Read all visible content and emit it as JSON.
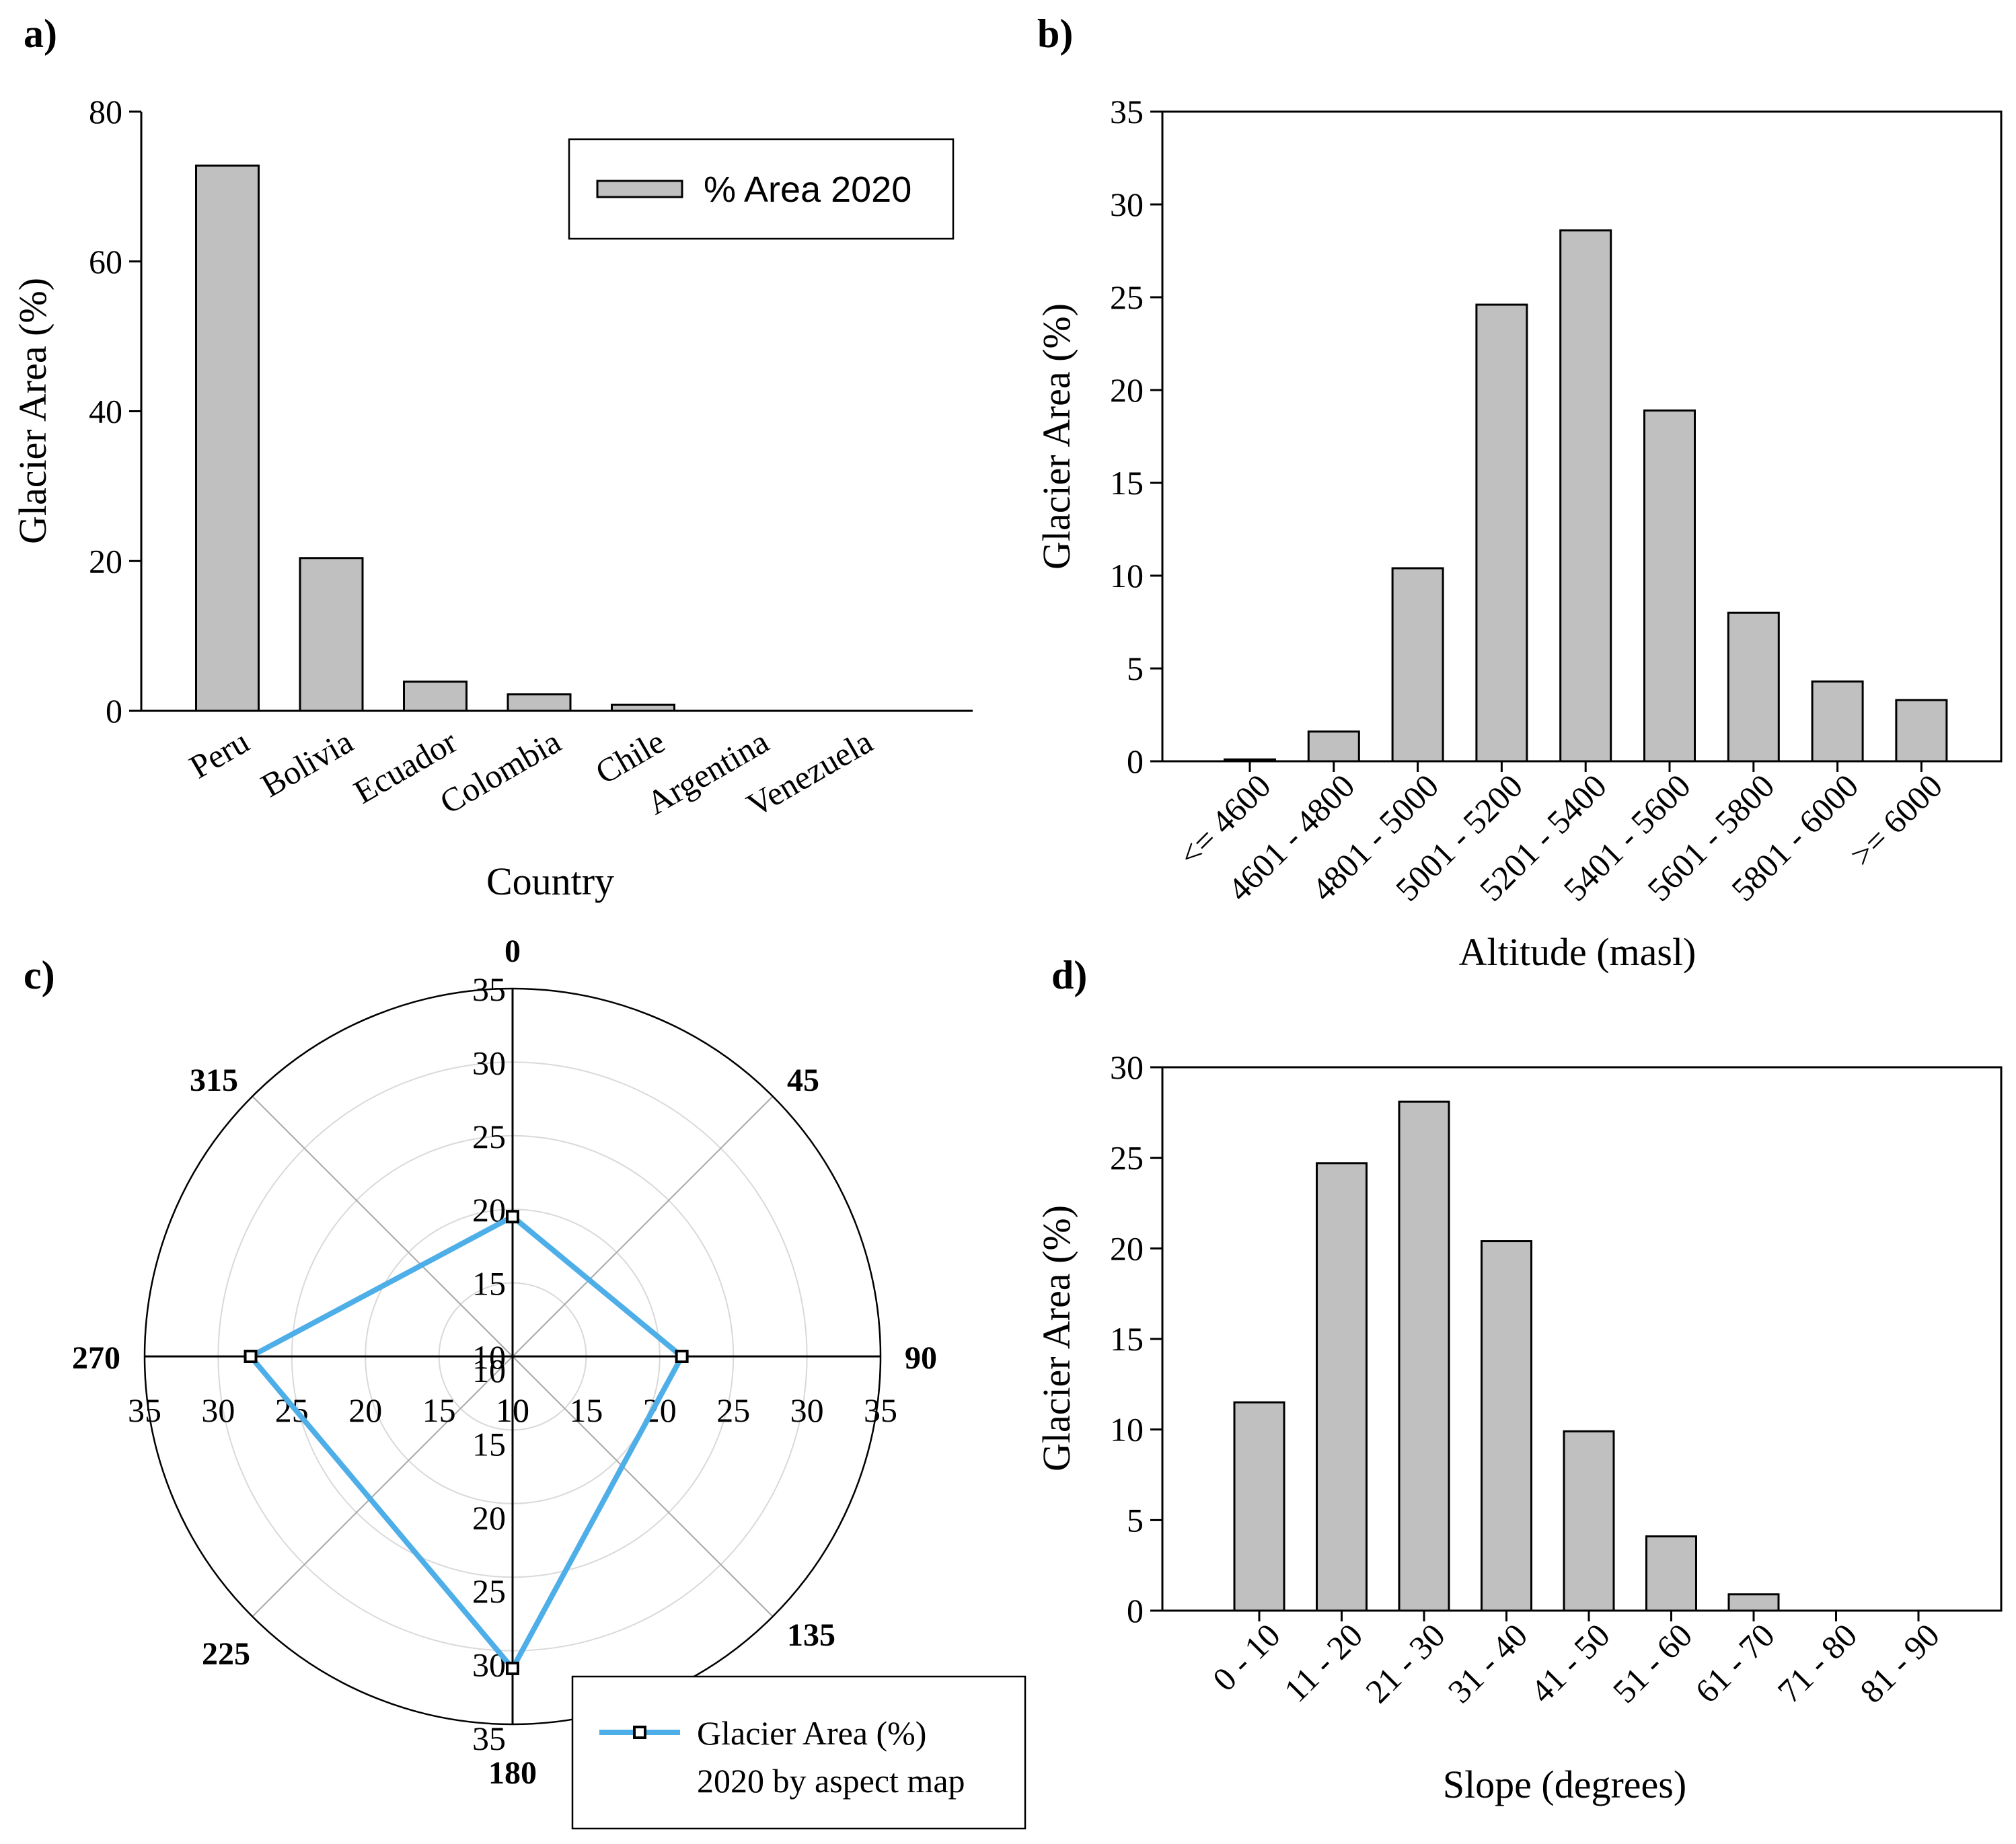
{
  "chart_data": [
    {
      "panel": "a)",
      "type": "bar",
      "categories": [
        "Peru",
        "Bolivia",
        "Ecuador",
        "Colombia",
        "Chile",
        "Argentina",
        "Venezuela"
      ],
      "values": [
        72.8,
        20.4,
        3.9,
        2.2,
        0.8,
        0.0,
        0.0
      ],
      "legend": "% Area 2020",
      "xlabel": "Country",
      "ylabel": "Glacier Area (%)",
      "ylim": [
        0,
        80
      ],
      "yticks": [
        "0",
        "20",
        "40",
        "60",
        "80"
      ]
    },
    {
      "panel": "b)",
      "type": "bar",
      "categories": [
        "<= 4600",
        "4601 - 4800",
        "4801 - 5000",
        "5001 - 5200",
        "5201 - 5400",
        "5401 - 5600",
        "5601 - 5800",
        "5801 - 6000",
        ">= 6000"
      ],
      "values": [
        0.1,
        1.6,
        10.4,
        24.6,
        28.6,
        18.9,
        8.0,
        4.3,
        3.3
      ],
      "xlabel": "Altitude (masl)",
      "ylabel": "Glacier Area (%)",
      "ylim": [
        0,
        35
      ],
      "yticks": [
        "0",
        "5",
        "10",
        "15",
        "20",
        "25",
        "30",
        "35"
      ]
    },
    {
      "panel": "c)",
      "type": "radar",
      "directions": [
        "0",
        "45",
        "90",
        "135",
        "180",
        "225",
        "270",
        "315"
      ],
      "series": [
        {
          "name": "Glacier Area (%) 2020 by aspect map",
          "points": [
            {
              "angle": 0,
              "value": 19.5
            },
            {
              "angle": 90,
              "value": 21.5
            },
            {
              "angle": 180,
              "value": 31.2
            },
            {
              "angle": 270,
              "value": 27.8
            }
          ]
        }
      ],
      "rlim": [
        10,
        35
      ],
      "rticks": [
        "10",
        "15",
        "20",
        "25",
        "30",
        "35"
      ],
      "legend_lines": [
        "Glacier Area (%)",
        "2020 by aspect map"
      ]
    },
    {
      "panel": "d)",
      "type": "bar",
      "categories": [
        "0 - 10",
        "11 - 20",
        "21 - 30",
        "31 - 40",
        "41 - 50",
        "51 - 60",
        "61 - 70",
        "71 - 80",
        "81 - 90"
      ],
      "values": [
        11.5,
        24.7,
        28.1,
        20.4,
        9.9,
        4.1,
        0.9,
        0.0,
        0.0
      ],
      "xlabel": "Slope (degrees)",
      "ylabel": "Glacier Area (%)",
      "ylim": [
        0,
        30
      ],
      "yticks": [
        "0",
        "5",
        "10",
        "15",
        "20",
        "25",
        "30"
      ]
    }
  ],
  "colors": {
    "bar_fill": "#c0c0c0",
    "radar_line": "#4eaee8"
  }
}
